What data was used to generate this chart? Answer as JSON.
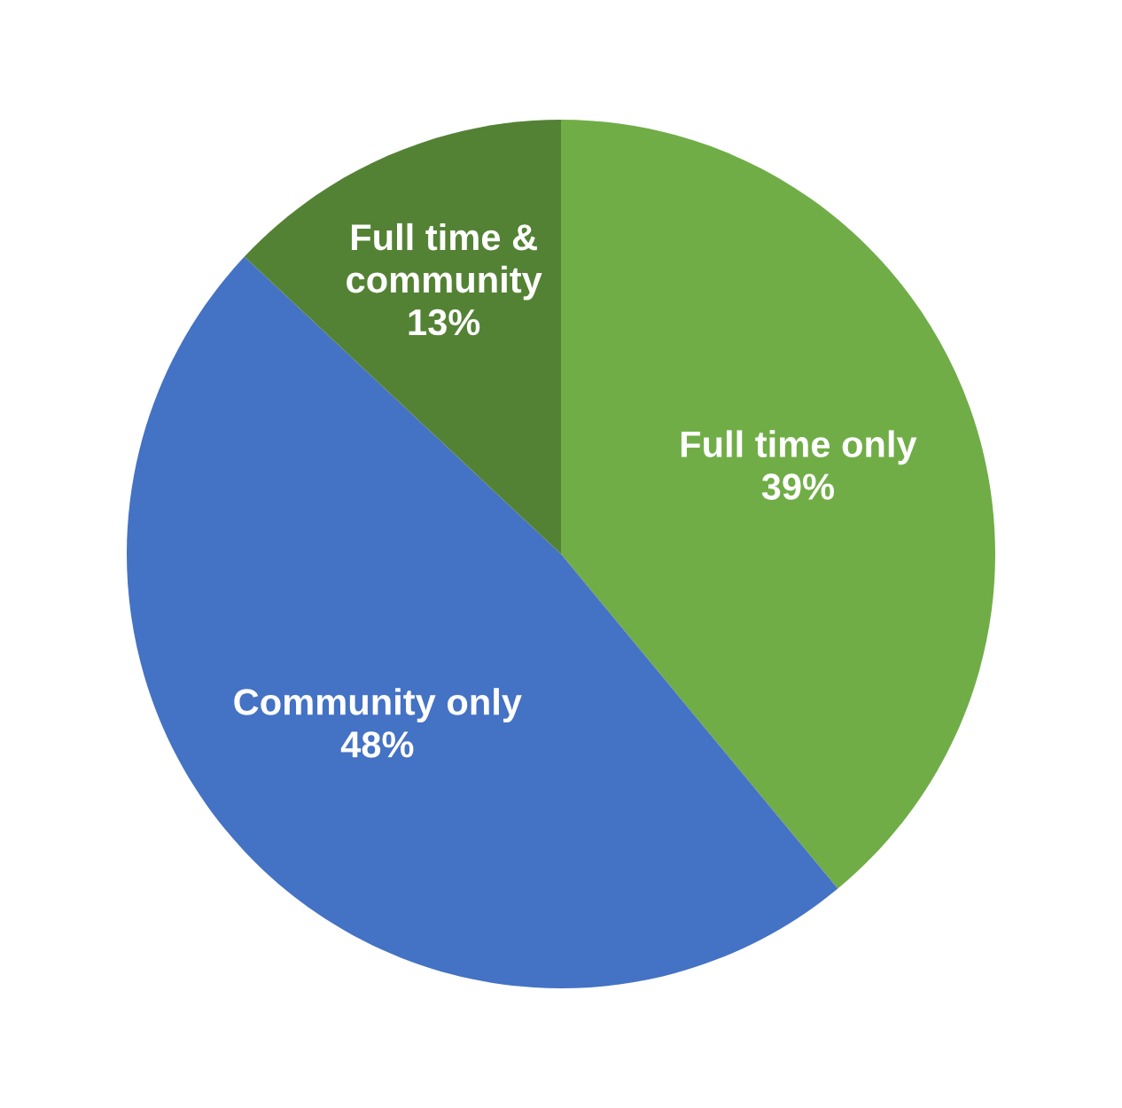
{
  "chart_data": {
    "type": "pie",
    "categories": [
      "Full time only",
      "Community only",
      "Full time & community"
    ],
    "values": [
      39,
      48,
      13
    ],
    "value_labels": [
      "39%",
      "48%",
      "13%"
    ],
    "colors": [
      "#70ad47",
      "#4472c4",
      "#548235"
    ],
    "legend": false
  }
}
